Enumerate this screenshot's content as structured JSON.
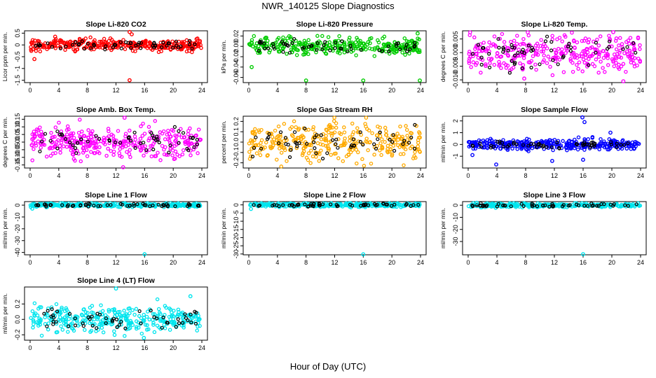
{
  "page": {
    "title": "NWR_140125  Slope Diagnostics",
    "x_axis_title": "Hour of Day (UTC)"
  },
  "chart_data": [
    {
      "type": "scatter",
      "title": "Slope Li-820 CO2",
      "ylabel": "Licor ppm per min.",
      "color": "#ff0000",
      "xlim": [
        0,
        24
      ],
      "ylim": [
        -1.6,
        0.6
      ],
      "x_ticks": [
        0,
        4,
        8,
        12,
        16,
        20,
        24
      ],
      "y_ticks": [
        -1.5,
        -1.0,
        -0.5,
        0.0,
        0.5
      ],
      "y_tick_labels": [
        "-1.5",
        "-1",
        "-0.5",
        "0",
        "0.5"
      ],
      "spread": 0.12,
      "outliers": [
        [
          0.6,
          -0.6
        ],
        [
          13.9,
          -1.5
        ],
        [
          13.9,
          0.55
        ],
        [
          3.5,
          0.35
        ],
        [
          14.2,
          0.45
        ]
      ]
    },
    {
      "type": "scatter",
      "title": "Slope Li-820 Pressure",
      "ylabel": "kPa per min.",
      "color": "#00cc00",
      "xlim": [
        0,
        24
      ],
      "ylim": [
        -0.07,
        0.03
      ],
      "x_ticks": [
        0,
        4,
        8,
        12,
        16,
        20,
        24
      ],
      "y_ticks": [
        -0.06,
        -0.04,
        -0.02,
        0.0,
        0.02
      ],
      "y_tick_labels": [
        "-0.06",
        "-0.04",
        "-0.02",
        "0.00",
        "0.02"
      ],
      "spread": 0.008,
      "outliers": [
        [
          8.0,
          -0.066
        ],
        [
          16.0,
          -0.066
        ],
        [
          23.6,
          0.025
        ],
        [
          0.4,
          -0.04
        ],
        [
          23.9,
          -0.066
        ]
      ]
    },
    {
      "type": "scatter",
      "title": "Slope Li-820 Temp.",
      "ylabel": "degrees C per min.",
      "color": "#ff00ff",
      "xlim": [
        0,
        24
      ],
      "ylim": [
        -0.011,
        0.008
      ],
      "x_ticks": [
        0,
        4,
        8,
        12,
        16,
        20,
        24
      ],
      "y_ticks": [
        -0.01,
        -0.005,
        0.0,
        0.005
      ],
      "y_tick_labels": [
        "-0.010",
        "-0.005",
        "0.000",
        "0.005"
      ],
      "spread": 0.0035,
      "outliers": [
        [
          21.6,
          -0.0105
        ],
        [
          20.2,
          0.0075
        ],
        [
          7.8,
          -0.0095
        ]
      ]
    },
    {
      "type": "scatter",
      "title": "Slope Amb. Box Temp.",
      "ylabel": "degrees C per min.",
      "color": "#ff00ff",
      "xlim": [
        0,
        24
      ],
      "ylim": [
        -0.17,
        0.17
      ],
      "x_ticks": [
        0,
        4,
        8,
        12,
        16,
        20,
        24
      ],
      "y_ticks": [
        -0.15,
        -0.1,
        -0.05,
        0.0,
        0.05,
        0.1,
        0.15
      ],
      "y_tick_labels": [
        "-0.15",
        "-0.10",
        "-0.05",
        "0.00",
        "0.05",
        "0.10",
        "0.15"
      ],
      "spread": 0.05,
      "outliers": [
        [
          13.0,
          -0.165
        ],
        [
          13.2,
          0.16
        ]
      ]
    },
    {
      "type": "scatter",
      "title": "Slope Gas Stream RH",
      "ylabel": "percent per min.",
      "color": "#ffaa00",
      "xlim": [
        0,
        24
      ],
      "ylim": [
        -0.25,
        0.25
      ],
      "x_ticks": [
        0,
        4,
        8,
        12,
        16,
        20,
        24
      ],
      "y_ticks": [
        -0.2,
        -0.1,
        0.0,
        0.1,
        0.2
      ],
      "y_tick_labels": [
        "-0.2",
        "-0.1",
        "0.0",
        "0.1",
        "0.2"
      ],
      "spread": 0.09,
      "outliers": []
    },
    {
      "type": "scatter",
      "title": "Slope Sample Flow",
      "ylabel": "ml/min per min.",
      "color": "#0000ff",
      "xlim": [
        0,
        24
      ],
      "ylim": [
        -2.0,
        2.4
      ],
      "x_ticks": [
        0,
        4,
        8,
        12,
        16,
        20,
        24
      ],
      "y_ticks": [
        -1,
        0,
        1,
        2
      ],
      "y_tick_labels": [
        "-1",
        "0",
        "1",
        "2"
      ],
      "spread": 0.22,
      "outliers": [
        [
          15.9,
          2.3
        ],
        [
          16.2,
          1.9
        ],
        [
          3.9,
          -1.7
        ],
        [
          11.7,
          -1.4
        ],
        [
          16.0,
          -1.3
        ],
        [
          19.8,
          1.0
        ],
        [
          0.6,
          -0.9
        ]
      ]
    },
    {
      "type": "scatter",
      "title": "Slope Line 1 Flow",
      "ylabel": "ml/min per min.",
      "color": "#00e5ee",
      "xlim": [
        0,
        24
      ],
      "ylim": [
        -42,
        3
      ],
      "x_ticks": [
        0,
        4,
        8,
        12,
        16,
        20,
        24
      ],
      "y_ticks": [
        -40,
        -30,
        -20,
        -10,
        0
      ],
      "y_tick_labels": [
        "-40",
        "-30",
        "-20",
        "-10",
        "0"
      ],
      "spread": 0.8,
      "outliers": [
        [
          16.0,
          -41.5
        ],
        [
          0.3,
          -3.0
        ]
      ]
    },
    {
      "type": "scatter",
      "title": "Slope Line 2 Flow",
      "ylabel": "ml/min per min.",
      "color": "#00e5ee",
      "xlim": [
        0,
        24
      ],
      "ylim": [
        -30.5,
        2
      ],
      "x_ticks": [
        0,
        4,
        8,
        12,
        16,
        20,
        24
      ],
      "y_ticks": [
        -30,
        -25,
        -20,
        -15,
        -10,
        -5,
        0
      ],
      "y_tick_labels": [
        "-30",
        "-25",
        "-20",
        "-15",
        "-10",
        "-5",
        "0"
      ],
      "spread": 0.6,
      "outliers": [
        [
          16.0,
          -30.2
        ],
        [
          0.3,
          -2.5
        ]
      ]
    },
    {
      "type": "scatter",
      "title": "Slope Line 3 Flow",
      "ylabel": "ml/min per min.",
      "color": "#00e5ee",
      "xlim": [
        0,
        24
      ],
      "ylim": [
        -41,
        3
      ],
      "x_ticks": [
        0,
        4,
        8,
        12,
        16,
        20,
        24
      ],
      "y_ticks": [
        -30,
        -20,
        -10,
        0
      ],
      "y_tick_labels": [
        "-30",
        "-20",
        "-10",
        "0"
      ],
      "spread": 0.8,
      "outliers": [
        [
          16.0,
          -40.5
        ],
        [
          1.2,
          2.0
        ]
      ]
    },
    {
      "type": "scatter",
      "title": "Slope Line 4 (LT) Flow",
      "ylabel": "ml/min per min.",
      "color": "#00e5ee",
      "xlim": [
        0,
        24
      ],
      "ylim": [
        -0.27,
        0.42
      ],
      "x_ticks": [
        0,
        4,
        8,
        12,
        16,
        20,
        24
      ],
      "y_ticks": [
        -0.2,
        0.0,
        0.2
      ],
      "y_tick_labels": [
        "-0.2",
        "0.0",
        "0.2"
      ],
      "spread": 0.085,
      "outliers": [
        [
          12.0,
          0.4
        ],
        [
          15.9,
          -0.24
        ],
        [
          22.4,
          0.3
        ]
      ]
    }
  ]
}
